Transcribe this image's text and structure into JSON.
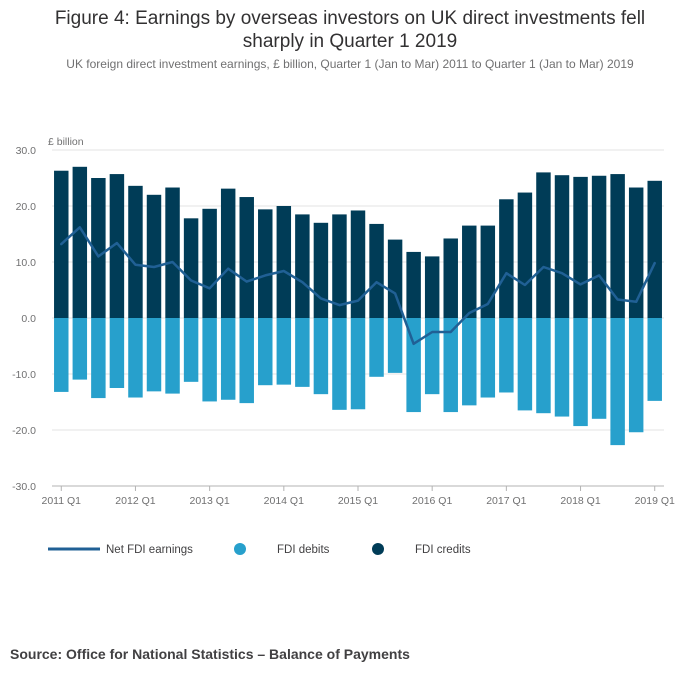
{
  "chart_data": {
    "type": "bar",
    "title": "Figure 4: Earnings by overseas investors on UK direct investments fell sharply in Quarter 1 2019",
    "subtitle": "UK foreign direct investment earnings, £ billion, Quarter 1 (Jan to Mar) 2011 to Quarter 1 (Jan to Mar) 2019",
    "ylabel": "£ billion",
    "ylim": [
      -30,
      30
    ],
    "yticks": [
      "30.0",
      "20.0",
      "10.0",
      "0.0",
      "-10.0",
      "-20.0",
      "-30.0"
    ],
    "ytick_values": [
      30,
      20,
      10,
      0,
      -10,
      -20,
      -30
    ],
    "xtick_labels": [
      "2011 Q1",
      "2012 Q1",
      "2013 Q1",
      "2014 Q1",
      "2015 Q1",
      "2016 Q1",
      "2017 Q1",
      "2018 Q1",
      "2019 Q1"
    ],
    "xtick_indices": [
      0,
      4,
      8,
      12,
      16,
      20,
      24,
      28,
      32
    ],
    "categories": [
      "2011 Q1",
      "2011 Q2",
      "2011 Q3",
      "2011 Q4",
      "2012 Q1",
      "2012 Q2",
      "2012 Q3",
      "2012 Q4",
      "2013 Q1",
      "2013 Q2",
      "2013 Q3",
      "2013 Q4",
      "2014 Q1",
      "2014 Q2",
      "2014 Q3",
      "2014 Q4",
      "2015 Q1",
      "2015 Q2",
      "2015 Q3",
      "2015 Q4",
      "2016 Q1",
      "2016 Q2",
      "2016 Q3",
      "2016 Q4",
      "2017 Q1",
      "2017 Q2",
      "2017 Q3",
      "2017 Q4",
      "2018 Q1",
      "2018 Q2",
      "2018 Q3",
      "2018 Q4",
      "2019 Q1"
    ],
    "series": [
      {
        "name": "FDI credits",
        "type": "bar",
        "color": "#003c57",
        "values": [
          26.3,
          27.0,
          25.0,
          25.7,
          23.6,
          22.0,
          23.3,
          17.8,
          19.5,
          23.1,
          21.6,
          19.4,
          20.0,
          18.5,
          17.0,
          18.5,
          19.2,
          16.8,
          14.0,
          11.8,
          11.0,
          14.2,
          16.5,
          16.5,
          21.2,
          22.4,
          26.0,
          25.5,
          25.2,
          25.4,
          25.7,
          23.3,
          24.5
        ]
      },
      {
        "name": "FDI debits",
        "type": "bar",
        "color": "#27a0cc",
        "values": [
          -13.2,
          -11.0,
          -14.3,
          -12.5,
          -14.2,
          -13.1,
          -13.5,
          -11.4,
          -14.9,
          -14.6,
          -15.2,
          -12.0,
          -11.9,
          -12.3,
          -13.6,
          -16.4,
          -16.3,
          -10.5,
          -9.8,
          -16.8,
          -13.6,
          -16.8,
          -15.6,
          -14.2,
          -13.3,
          -16.5,
          -17.0,
          -17.6,
          -19.3,
          -18.0,
          -22.7,
          -20.4,
          -14.8
        ]
      },
      {
        "name": "Net FDI earnings",
        "type": "line",
        "color": "#206095",
        "values": [
          13.2,
          16.2,
          11.0,
          13.4,
          9.5,
          9.1,
          10.0,
          6.7,
          5.3,
          8.8,
          6.5,
          7.6,
          8.4,
          6.4,
          3.5,
          2.3,
          3.1,
          6.4,
          4.4,
          -4.6,
          -2.5,
          -2.5,
          0.9,
          2.5,
          8.0,
          5.9,
          9.1,
          8.0,
          6.0,
          7.6,
          3.3,
          2.9,
          9.8
        ]
      }
    ],
    "legend": [
      {
        "label": "Net FDI earnings",
        "kind": "line",
        "color": "#206095"
      },
      {
        "label": "FDI debits",
        "kind": "dot",
        "color": "#27a0cc"
      },
      {
        "label": "FDI credits",
        "kind": "dot",
        "color": "#003c57"
      }
    ],
    "legend_position": "bottom-left"
  },
  "source": "Source: Office for National Statistics – Balance of Payments"
}
